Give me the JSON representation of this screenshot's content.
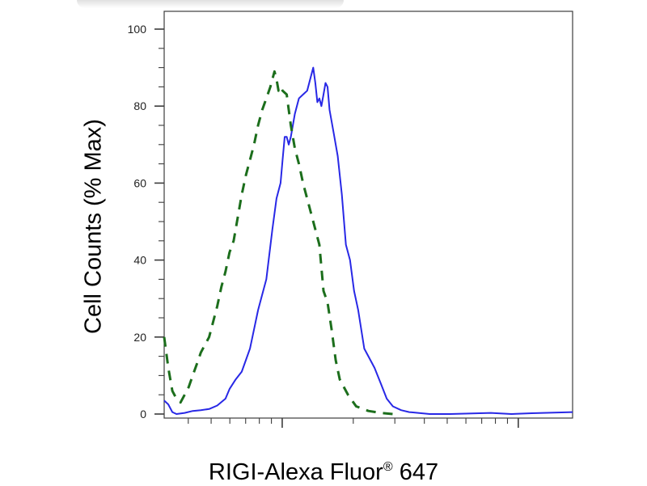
{
  "chart_data": {
    "type": "line",
    "ylabel": "Cell Counts (% Max)",
    "xlabel_main": "RIGI-Alexa Fluor",
    "xlabel_sup": "®",
    "xlabel_tail": " 647",
    "x_scale": "log",
    "x_tick_labels": [],
    "ylim": [
      0,
      100
    ],
    "y_ticks": [
      0,
      20,
      40,
      60,
      80,
      100
    ],
    "y_tick_labels": [
      "0",
      "20",
      "40",
      "60",
      "80",
      "100"
    ],
    "grid": false,
    "series": [
      {
        "style": "solid",
        "color": "#2828e6",
        "points": [
          [
            0.0,
            3.5
          ],
          [
            0.01,
            2.5
          ],
          [
            0.02,
            0.5
          ],
          [
            0.03,
            0.0
          ],
          [
            0.05,
            0.3
          ],
          [
            0.07,
            0.8
          ],
          [
            0.09,
            1.0
          ],
          [
            0.11,
            1.3
          ],
          [
            0.13,
            2.2
          ],
          [
            0.15,
            4.0
          ],
          [
            0.16,
            6.5
          ],
          [
            0.175,
            9.0
          ],
          [
            0.19,
            11.0
          ],
          [
            0.2,
            14.0
          ],
          [
            0.21,
            17.0
          ],
          [
            0.22,
            22.0
          ],
          [
            0.23,
            27.0
          ],
          [
            0.24,
            31.0
          ],
          [
            0.25,
            35.0
          ],
          [
            0.265,
            48.0
          ],
          [
            0.275,
            56.0
          ],
          [
            0.285,
            60.0
          ],
          [
            0.29,
            66.0
          ],
          [
            0.295,
            72.0
          ],
          [
            0.3,
            72.0
          ],
          [
            0.305,
            70.0
          ],
          [
            0.31,
            72.0
          ],
          [
            0.32,
            78.0
          ],
          [
            0.33,
            82.0
          ],
          [
            0.34,
            83.0
          ],
          [
            0.35,
            84.0
          ],
          [
            0.36,
            88.0
          ],
          [
            0.365,
            90.0
          ],
          [
            0.37,
            86.0
          ],
          [
            0.375,
            81.0
          ],
          [
            0.38,
            82.0
          ],
          [
            0.385,
            80.0
          ],
          [
            0.39,
            83.0
          ],
          [
            0.395,
            86.0
          ],
          [
            0.4,
            85.0
          ],
          [
            0.405,
            79.0
          ],
          [
            0.415,
            73.0
          ],
          [
            0.425,
            67.0
          ],
          [
            0.435,
            57.0
          ],
          [
            0.445,
            44.0
          ],
          [
            0.455,
            40.0
          ],
          [
            0.465,
            32.0
          ],
          [
            0.475,
            27.0
          ],
          [
            0.49,
            17.0
          ],
          [
            0.5,
            15.0
          ],
          [
            0.515,
            12.0
          ],
          [
            0.53,
            8.0
          ],
          [
            0.545,
            4.0
          ],
          [
            0.56,
            2.0
          ],
          [
            0.58,
            1.0
          ],
          [
            0.6,
            0.5
          ],
          [
            0.65,
            0.0
          ],
          [
            0.7,
            0.0
          ],
          [
            0.8,
            0.3
          ],
          [
            0.85,
            0.0
          ],
          [
            0.9,
            0.2
          ],
          [
            1.0,
            0.5
          ]
        ]
      },
      {
        "style": "dashed",
        "color": "#1c6e1c",
        "points": [
          [
            0.0,
            20.0
          ],
          [
            0.01,
            12.0
          ],
          [
            0.02,
            6.0
          ],
          [
            0.03,
            4.0
          ],
          [
            0.04,
            3.0
          ],
          [
            0.05,
            5.0
          ],
          [
            0.06,
            7.0
          ],
          [
            0.07,
            10.0
          ],
          [
            0.08,
            13.0
          ],
          [
            0.09,
            16.0
          ],
          [
            0.1,
            18.0
          ],
          [
            0.11,
            20.0
          ],
          [
            0.12,
            24.0
          ],
          [
            0.13,
            28.0
          ],
          [
            0.14,
            33.0
          ],
          [
            0.15,
            37.0
          ],
          [
            0.16,
            42.0
          ],
          [
            0.17,
            45.0
          ],
          [
            0.18,
            51.0
          ],
          [
            0.19,
            57.0
          ],
          [
            0.2,
            62.0
          ],
          [
            0.21,
            66.0
          ],
          [
            0.22,
            70.0
          ],
          [
            0.23,
            75.0
          ],
          [
            0.24,
            79.0
          ],
          [
            0.25,
            82.0
          ],
          [
            0.26,
            85.0
          ],
          [
            0.27,
            89.0
          ],
          [
            0.275,
            87.0
          ],
          [
            0.28,
            84.0
          ],
          [
            0.285,
            85.0
          ],
          [
            0.29,
            84.0
          ],
          [
            0.3,
            83.0
          ],
          [
            0.31,
            75.0
          ],
          [
            0.32,
            69.0
          ],
          [
            0.33,
            65.0
          ],
          [
            0.34,
            60.0
          ],
          [
            0.36,
            52.0
          ],
          [
            0.38,
            44.0
          ],
          [
            0.39,
            32.0
          ],
          [
            0.4,
            29.0
          ],
          [
            0.41,
            22.0
          ],
          [
            0.42,
            14.0
          ],
          [
            0.43,
            9.0
          ],
          [
            0.45,
            5.0
          ],
          [
            0.47,
            2.0
          ],
          [
            0.5,
            0.8
          ],
          [
            0.53,
            0.3
          ],
          [
            0.56,
            0.0
          ]
        ]
      }
    ]
  }
}
